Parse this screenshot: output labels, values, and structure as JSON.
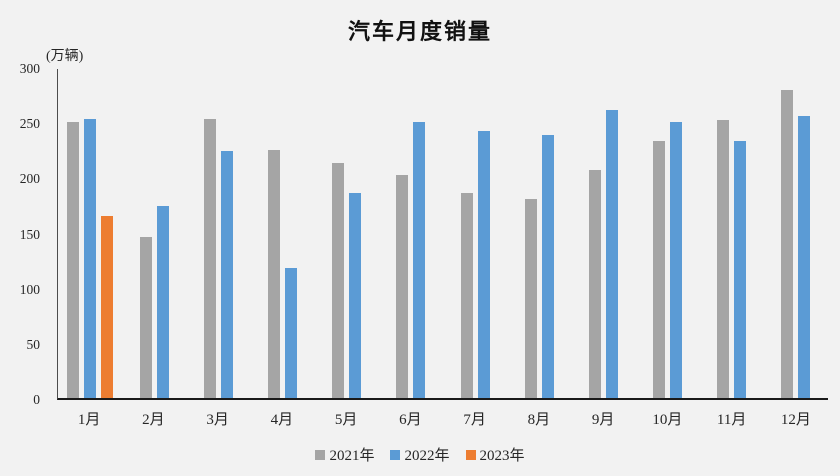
{
  "chart_data": {
    "type": "bar",
    "title": "汽车月度销量",
    "ylabel": "(万辆)",
    "xlabel": "",
    "categories": [
      "1月",
      "2月",
      "3月",
      "4月",
      "5月",
      "6月",
      "7月",
      "8月",
      "9月",
      "10月",
      "11月",
      "12月"
    ],
    "series": [
      {
        "name": "2021年",
        "color": "#A5A5A5",
        "values": [
          250,
          146,
          253,
          225,
          213,
          202,
          186,
          180,
          207,
          233,
          252,
          279
        ]
      },
      {
        "name": "2022年",
        "color": "#5B9BD5",
        "values": [
          253,
          174,
          224,
          118,
          186,
          250,
          242,
          238,
          261,
          250,
          233,
          256
        ]
      },
      {
        "name": "2023年",
        "color": "#ED7D31",
        "values": [
          165,
          null,
          null,
          null,
          null,
          null,
          null,
          null,
          null,
          null,
          null,
          null
        ]
      }
    ],
    "ylim": [
      0,
      300
    ],
    "yticks": [
      0,
      50,
      100,
      150,
      200,
      250,
      300
    ],
    "grid": false,
    "legend_position": "bottom",
    "background_color": "#F2F2F2",
    "axis_color": "#1A1A1A"
  }
}
